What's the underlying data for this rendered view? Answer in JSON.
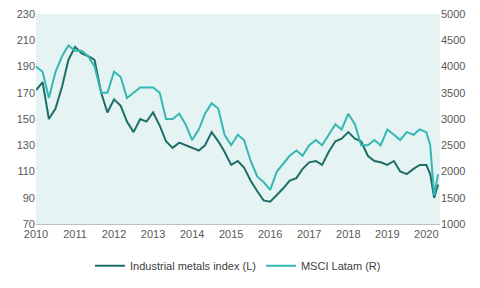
{
  "chart_data": {
    "type": "line",
    "x": [
      2010.0,
      2010.17,
      2010.33,
      2010.5,
      2010.67,
      2010.83,
      2011.0,
      2011.17,
      2011.33,
      2011.5,
      2011.67,
      2011.83,
      2012.0,
      2012.17,
      2012.33,
      2012.5,
      2012.67,
      2012.83,
      2013.0,
      2013.17,
      2013.33,
      2013.5,
      2013.67,
      2013.83,
      2014.0,
      2014.17,
      2014.33,
      2014.5,
      2014.67,
      2014.83,
      2015.0,
      2015.17,
      2015.33,
      2015.5,
      2015.67,
      2015.83,
      2016.0,
      2016.17,
      2016.33,
      2016.5,
      2016.67,
      2016.83,
      2017.0,
      2017.17,
      2017.33,
      2017.5,
      2017.67,
      2017.83,
      2018.0,
      2018.17,
      2018.33,
      2018.5,
      2018.67,
      2018.83,
      2019.0,
      2019.17,
      2019.33,
      2019.5,
      2019.67,
      2019.83,
      2020.0,
      2020.1,
      2020.2,
      2020.3
    ],
    "series": [
      {
        "name": "Industrial metals index (L)",
        "color": "#1e6e68",
        "values": [
          172,
          178,
          150,
          158,
          175,
          195,
          205,
          200,
          198,
          195,
          170,
          155,
          165,
          160,
          148,
          140,
          150,
          148,
          155,
          145,
          133,
          128,
          132,
          130,
          128,
          126,
          130,
          140,
          133,
          125,
          115,
          118,
          113,
          103,
          95,
          88,
          87,
          92,
          97,
          103,
          105,
          112,
          117,
          118,
          115,
          125,
          133,
          135,
          140,
          135,
          133,
          122,
          118,
          117,
          115,
          118,
          110,
          108,
          112,
          115,
          115,
          108,
          90,
          100
        ]
      },
      {
        "name": "MSCI Latam (R)",
        "color": "#35b7b4",
        "axis": "y2",
        "values": [
          4000,
          3900,
          3400,
          3900,
          4200,
          4400,
          4300,
          4300,
          4200,
          4000,
          3500,
          3500,
          3900,
          3800,
          3400,
          3500,
          3600,
          3600,
          3600,
          3500,
          3000,
          3000,
          3100,
          2900,
          2600,
          2800,
          3100,
          3300,
          3200,
          2700,
          2500,
          2700,
          2600,
          2200,
          1900,
          1800,
          1650,
          2000,
          2150,
          2300,
          2400,
          2300,
          2500,
          2600,
          2500,
          2700,
          2900,
          2800,
          3100,
          2900,
          2500,
          2500,
          2600,
          2500,
          2800,
          2700,
          2600,
          2750,
          2700,
          2800,
          2750,
          2500,
          1550,
          1950
        ]
      }
    ],
    "xlim": [
      2010,
      2020.35
    ],
    "xticks": [
      2010,
      2011,
      2012,
      2013,
      2014,
      2015,
      2016,
      2017,
      2018,
      2019,
      2020
    ],
    "ylim": [
      70,
      230
    ],
    "yticks": [
      70,
      90,
      110,
      130,
      150,
      170,
      190,
      210,
      230
    ],
    "y2lim": [
      1000,
      5000
    ],
    "y2ticks": [
      1000,
      1500,
      2000,
      2500,
      3000,
      3500,
      4000,
      4500,
      5000
    ],
    "grid": false,
    "legend": "bottom"
  }
}
